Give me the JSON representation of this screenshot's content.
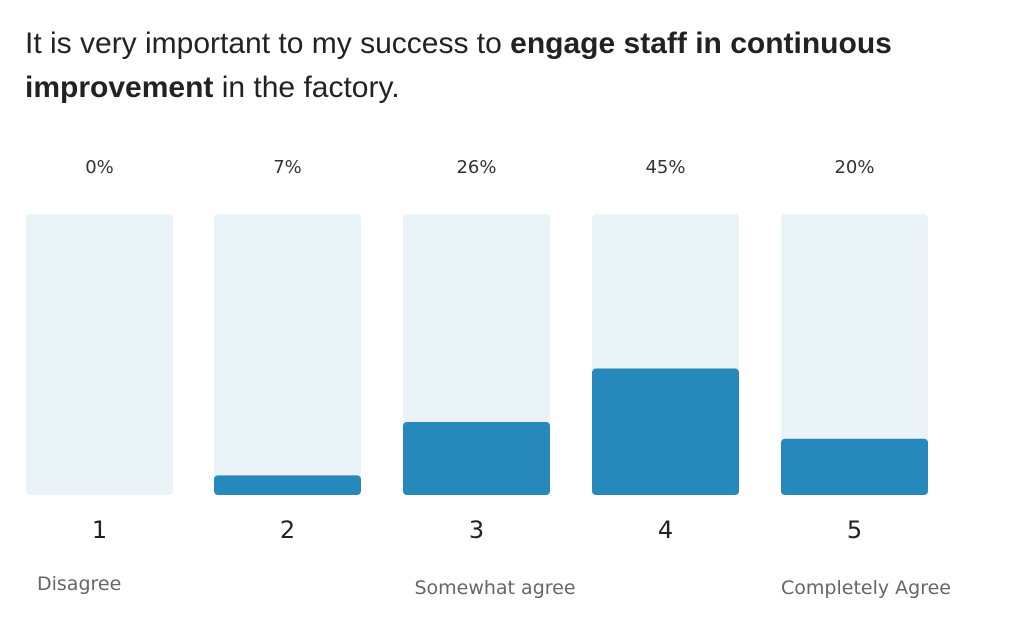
{
  "chart_data": {
    "type": "bar",
    "title_parts": [
      {
        "text": "It is very important to my success to ",
        "bold": false
      },
      {
        "text": "engage staff in continuous improvement",
        "bold": true
      },
      {
        "text": " in the factory.",
        "bold": false
      }
    ],
    "categories": [
      "1",
      "2",
      "3",
      "4",
      "5"
    ],
    "values": [
      0,
      7,
      26,
      45,
      20
    ],
    "value_labels": [
      "0%",
      "7%",
      "26%",
      "45%",
      "20%"
    ],
    "ylim": [
      0,
      100
    ],
    "scale_labels": [
      {
        "category": "1",
        "text": "Disagree"
      },
      {
        "category": "3",
        "text": "Somewhat agree"
      },
      {
        "category": "5",
        "text": "Completely Agree"
      }
    ],
    "colors": {
      "fill": "#2788bb",
      "track": "#e9f3f8"
    },
    "grid": false
  }
}
